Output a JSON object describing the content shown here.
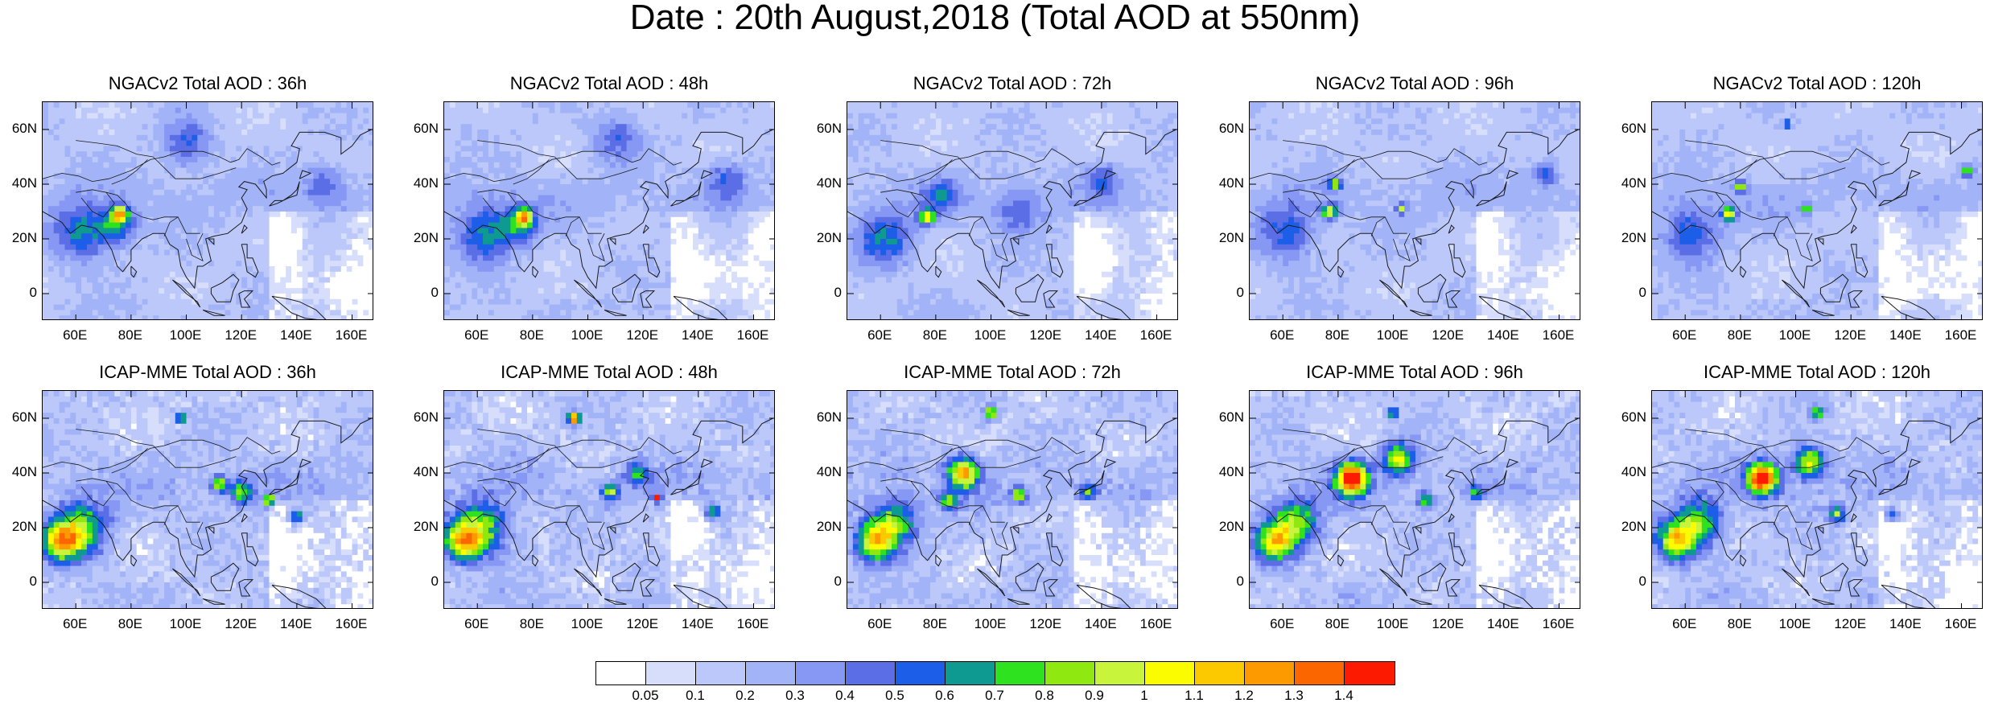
{
  "title": "Date : 20th August,2018 (Total AOD at 550nm)",
  "chart_data": [
    {
      "type": "heatmap",
      "title": "NGACv2 Total AOD : 36h",
      "model": "NGACv2",
      "row": 0
    },
    {
      "type": "heatmap",
      "title": "NGACv2 Total AOD : 48h",
      "model": "NGACv2",
      "row": 0
    },
    {
      "type": "heatmap",
      "title": "NGACv2 Total AOD : 72h",
      "model": "NGACv2",
      "row": 0
    },
    {
      "type": "heatmap",
      "title": "NGACv2 Total AOD : 96h",
      "model": "NGACv2",
      "row": 0
    },
    {
      "type": "heatmap",
      "title": "NGACv2 Total AOD : 120h",
      "model": "NGACv2",
      "row": 0
    },
    {
      "type": "heatmap",
      "title": "ICAP-MME Total AOD : 36h",
      "model": "ICAP-MME",
      "row": 1
    },
    {
      "type": "heatmap",
      "title": "ICAP-MME Total AOD : 48h",
      "model": "ICAP-MME",
      "row": 1
    },
    {
      "type": "heatmap",
      "title": "ICAP-MME Total AOD : 72h",
      "model": "ICAP-MME",
      "row": 1
    },
    {
      "type": "heatmap",
      "title": "ICAP-MME Total AOD : 96h",
      "model": "ICAP-MME",
      "row": 1
    },
    {
      "type": "heatmap",
      "title": "ICAP-MME Total AOD : 120h",
      "model": "ICAP-MME",
      "row": 1
    }
  ],
  "axes": {
    "x_ticks": [
      "60E",
      "80E",
      "100E",
      "120E",
      "140E",
      "160E"
    ],
    "x_values": [
      60,
      80,
      100,
      120,
      140,
      160
    ],
    "y_ticks": [
      "60N",
      "40N",
      "20N",
      "0"
    ],
    "y_values": [
      60,
      40,
      20,
      0
    ],
    "xlim": [
      48,
      168
    ],
    "ylim": [
      -10,
      70
    ]
  },
  "colorbar": {
    "labels": [
      "0.05",
      "0.1",
      "0.2",
      "0.3",
      "0.4",
      "0.5",
      "0.6",
      "0.7",
      "0.8",
      "0.9",
      "1",
      "1.1",
      "1.2",
      "1.3",
      "1.4"
    ],
    "colors": [
      "#ffffff",
      "#d6defc",
      "#bcc8f9",
      "#a2b4f7",
      "#8798f4",
      "#5b6ee6",
      "#1c5ee8",
      "#0f9a91",
      "#2fe21f",
      "#8fe810",
      "#c8f53c",
      "#fcfc00",
      "#fcc800",
      "#fc9a00",
      "#fc6600",
      "#fc1a00"
    ]
  }
}
